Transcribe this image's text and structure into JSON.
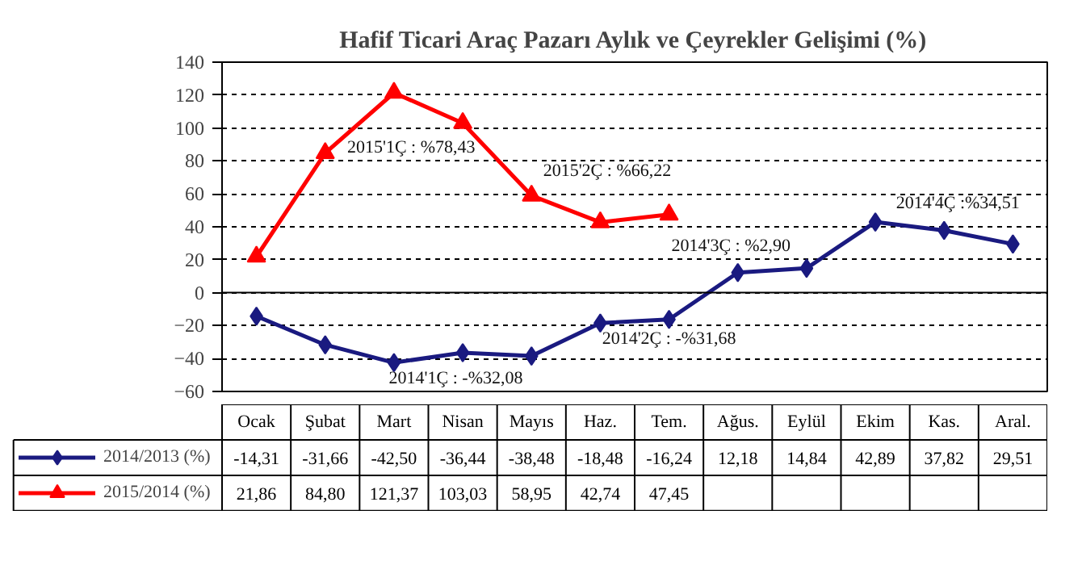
{
  "chart_data": {
    "type": "line",
    "title": "Hafif Ticari Araç Pazarı Aylık ve Çeyrekler Gelişimi (%)",
    "categories": [
      "Ocak",
      "Şubat",
      "Mart",
      "Nisan",
      "Mayıs",
      "Haz.",
      "Tem.",
      "Ağus.",
      "Eylül",
      "Ekim",
      "Kas.",
      "Aral."
    ],
    "series": [
      {
        "name": "2014/2013 (%)",
        "color": "#1a1a80",
        "marker": "diamond",
        "values": [
          -14.31,
          -31.66,
          -42.5,
          -36.44,
          -38.48,
          -18.48,
          -16.24,
          12.18,
          14.84,
          42.89,
          37.82,
          29.51
        ],
        "value_labels": [
          "-14,31",
          "-31,66",
          "-42,50",
          "-36,44",
          "-38,48",
          "-18,48",
          "-16,24",
          "12,18",
          "14,84",
          "42,89",
          "37,82",
          "29,51"
        ]
      },
      {
        "name": "2015/2014 (%)",
        "color": "#ff0000",
        "marker": "triangle",
        "values": [
          21.86,
          84.8,
          121.37,
          103.03,
          58.95,
          42.74,
          47.45,
          null,
          null,
          null,
          null,
          null
        ],
        "value_labels": [
          "21,86",
          "84,80",
          "121,37",
          "103,03",
          "58,95",
          "42,74",
          "47,45",
          null,
          null,
          null,
          null,
          null
        ]
      }
    ],
    "ylim": [
      -60,
      140
    ],
    "yticks": [
      -60,
      -40,
      -20,
      0,
      20,
      40,
      60,
      80,
      100,
      120,
      140
    ],
    "grid": "y",
    "legend": "bottom left",
    "line_style": "solid",
    "ref_lines": [
      {
        "axis": "y",
        "value": 0,
        "color": "#000000"
      }
    ],
    "annotations": [
      "2015'1Ç : %78,43",
      "2015'2Ç : %66,22",
      "2014'3Ç : %2,90",
      "2014'4Ç :%34,51",
      "2014'1Ç : -%32,08",
      "2014'2Ç : -%31,68"
    ]
  }
}
